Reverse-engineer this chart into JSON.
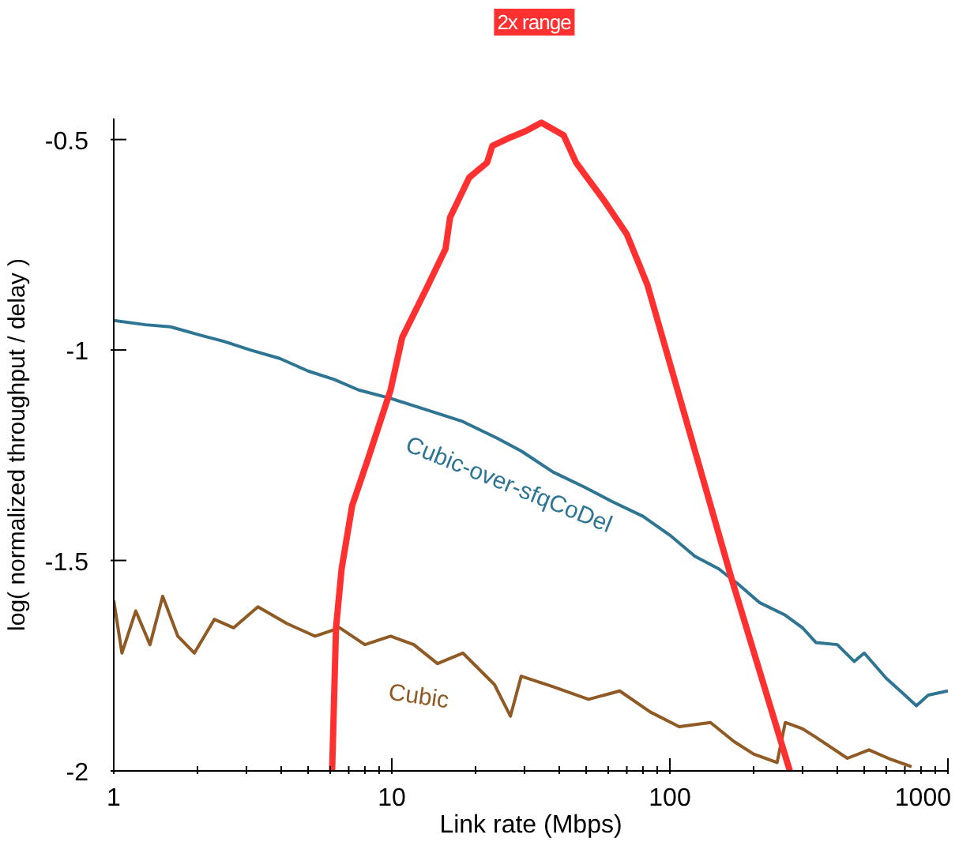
{
  "chart_data": {
    "type": "line",
    "xlabel": "Link rate (Mbps)",
    "ylabel": "log( normalized throughput / delay )",
    "log": "x",
    "xlim": [
      1,
      1000
    ],
    "xticks": [
      1,
      {
        "value": 2,
        "label": null
      },
      {
        "value": 3,
        "label": null
      },
      {
        "value": 4,
        "label": null
      },
      {
        "value": 5,
        "label": null
      },
      {
        "value": 6,
        "label": null
      },
      {
        "value": 7,
        "label": null
      },
      {
        "value": 8,
        "label": null
      },
      {
        "value": 9,
        "label": null
      },
      10,
      {
        "value": 20,
        "label": null
      },
      {
        "value": 30,
        "label": null
      },
      {
        "value": 40,
        "label": null
      },
      {
        "value": 50,
        "label": null
      },
      {
        "value": 60,
        "label": null
      },
      {
        "value": 70,
        "label": null
      },
      {
        "value": 80,
        "label": null
      },
      {
        "value": 90,
        "label": null
      },
      100,
      {
        "value": 200,
        "label": null
      },
      {
        "value": 300,
        "label": null
      },
      {
        "value": 400,
        "label": null
      },
      {
        "value": 500,
        "label": null
      },
      {
        "value": 600,
        "label": null
      },
      {
        "value": 700,
        "label": null
      },
      {
        "value": 800,
        "label": null
      },
      {
        "value": 900,
        "label": null
      },
      1000
    ],
    "ylim": [
      -2,
      -0.45
    ],
    "yticks": [
      -2,
      -1.5,
      -1,
      -0.5
    ],
    "grid": false,
    "legend": false,
    "marker": "none",
    "line_style": "solid",
    "series": [
      {
        "name": "Cubic-over-sfqCoDel",
        "color": "#2e7593",
        "x": [
          1,
          1.3,
          1.6,
          2.05,
          2.5,
          3.1,
          3.95,
          5,
          6.2,
          7.6,
          9.9,
          13,
          18,
          24,
          29.2,
          38,
          49,
          62,
          80,
          100,
          123,
          150,
          175,
          210,
          260,
          300,
          335,
          400,
          460,
          500,
          600,
          700,
          770,
          850,
          1000
        ],
        "values": [
          -0.93,
          -0.94,
          -0.945,
          -0.965,
          -0.98,
          -1.0,
          -1.02,
          -1.05,
          -1.07,
          -1.095,
          -1.115,
          -1.14,
          -1.17,
          -1.21,
          -1.24,
          -1.29,
          -1.325,
          -1.36,
          -1.395,
          -1.44,
          -1.49,
          -1.52,
          -1.555,
          -1.6,
          -1.63,
          -1.66,
          -1.695,
          -1.7,
          -1.74,
          -1.72,
          -1.78,
          -1.82,
          -1.845,
          -1.82,
          -1.81
        ]
      },
      {
        "name": "Cubic",
        "color": "#8f5a24",
        "x": [
          1,
          1.07,
          1.2,
          1.35,
          1.5,
          1.7,
          1.95,
          2.3,
          2.7,
          3.3,
          4.2,
          5.3,
          6.5,
          8,
          9.9,
          12,
          14.6,
          18,
          23.4,
          26.7,
          29.2,
          38,
          51,
          66,
          85,
          108,
          140,
          170,
          200,
          243,
          260,
          300,
          335,
          435,
          520,
          610,
          740
        ],
        "values": [
          -1.595,
          -1.72,
          -1.62,
          -1.7,
          -1.585,
          -1.68,
          -1.72,
          -1.64,
          -1.66,
          -1.61,
          -1.65,
          -1.68,
          -1.66,
          -1.7,
          -1.68,
          -1.7,
          -1.745,
          -1.72,
          -1.795,
          -1.87,
          -1.775,
          -1.8,
          -1.83,
          -1.81,
          -1.86,
          -1.895,
          -1.885,
          -1.93,
          -1.96,
          -1.98,
          -1.885,
          -1.9,
          -1.92,
          -1.97,
          -1.95,
          -1.97,
          -1.99
        ]
      },
      {
        "name": "2x range",
        "color": "#ff3030",
        "x": [
          6.1,
          6.3,
          6.6,
          7.2,
          8.2,
          9.9,
          10.9,
          13.3,
          15.6,
          16.2,
          19,
          22,
          23,
          26.7,
          30.3,
          34.5,
          41.5,
          46,
          58,
          70,
          83,
          112,
          167,
          270
        ],
        "values": [
          -2,
          -1.66,
          -1.52,
          -1.37,
          -1.26,
          -1.095,
          -0.97,
          -0.855,
          -0.76,
          -0.685,
          -0.59,
          -0.555,
          -0.515,
          -0.495,
          -0.48,
          -0.46,
          -0.49,
          -0.555,
          -0.645,
          -0.725,
          -0.845,
          -1.145,
          -1.545,
          -2
        ]
      }
    ]
  }
}
